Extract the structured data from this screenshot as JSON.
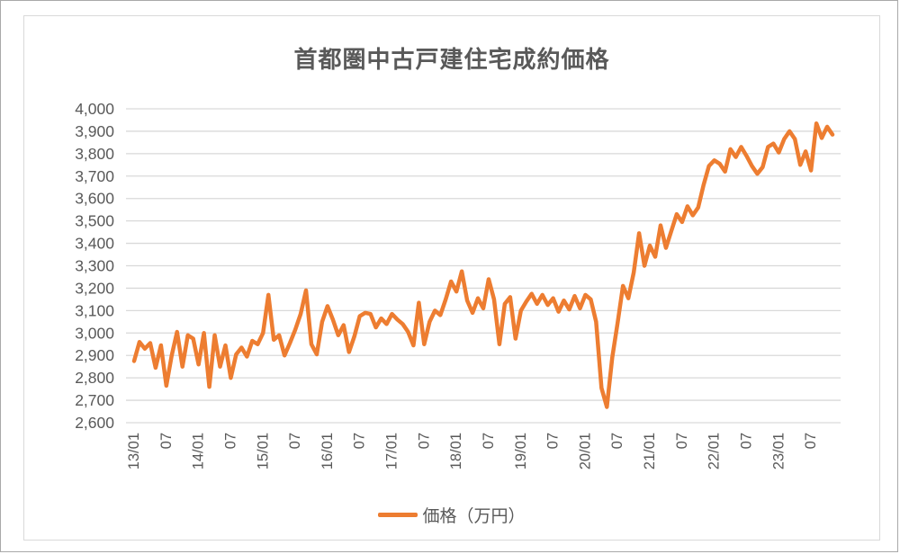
{
  "page": {
    "title": "首都圏中古戸建住宅成約価格"
  },
  "colors": {
    "line": "#ED7D31",
    "text": "#595959",
    "grid": "#D9D9D9",
    "frame_border": "#D9D9D9"
  },
  "legend": {
    "label": "価格（万円）"
  },
  "chart_data": {
    "type": "line",
    "title": "首都圏中古戸建住宅成約価格",
    "xlabel": "",
    "ylabel": "",
    "ylim": [
      2600,
      4000
    ],
    "y_tick_step": 100,
    "y_ticks": [
      2600,
      2700,
      2800,
      2900,
      3000,
      3100,
      3200,
      3300,
      3400,
      3500,
      3600,
      3700,
      3800,
      3900,
      4000
    ],
    "y_tick_labels": [
      "2,600",
      "2,700",
      "2,800",
      "2,900",
      "3,000",
      "3,100",
      "3,200",
      "3,300",
      "3,400",
      "3,500",
      "3,600",
      "3,700",
      "3,800",
      "3,900",
      "4,000"
    ],
    "grid": "horizontal",
    "legend_position": "bottom",
    "x_start": "2013-01",
    "x_frequency": "monthly",
    "x_labels": [
      "13/01",
      "07",
      "14/01",
      "07",
      "15/01",
      "07",
      "16/01",
      "07",
      "17/01",
      "07",
      "18/01",
      "07",
      "19/01",
      "07",
      "20/01",
      "07",
      "21/01",
      "07",
      "22/01",
      "07",
      "23/01",
      "07"
    ],
    "x_label_every": 6,
    "series": [
      {
        "name": "価格（万円）",
        "color": "#ED7D31",
        "values": [
          2875,
          2960,
          2930,
          2955,
          2845,
          2945,
          2765,
          2900,
          3005,
          2850,
          2990,
          2975,
          2860,
          3000,
          2760,
          2990,
          2850,
          2945,
          2800,
          2905,
          2935,
          2895,
          2965,
          2950,
          3000,
          3170,
          2970,
          2990,
          2900,
          2955,
          3015,
          3085,
          3190,
          2950,
          2905,
          3050,
          3120,
          3060,
          2990,
          3035,
          2915,
          2985,
          3075,
          3090,
          3085,
          3025,
          3065,
          3040,
          3085,
          3060,
          3040,
          3005,
          2945,
          3135,
          2950,
          3050,
          3100,
          3080,
          3150,
          3230,
          3185,
          3275,
          3145,
          3090,
          3155,
          3110,
          3240,
          3150,
          2950,
          3130,
          3160,
          2975,
          3100,
          3140,
          3175,
          3130,
          3170,
          3125,
          3155,
          3095,
          3145,
          3105,
          3165,
          3110,
          3170,
          3150,
          3050,
          2755,
          2670,
          2890,
          3045,
          3210,
          3155,
          3270,
          3445,
          3300,
          3390,
          3340,
          3480,
          3380,
          3455,
          3530,
          3495,
          3565,
          3525,
          3560,
          3660,
          3745,
          3770,
          3755,
          3720,
          3820,
          3785,
          3830,
          3790,
          3745,
          3710,
          3740,
          3830,
          3845,
          3805,
          3865,
          3900,
          3865,
          3750,
          3810,
          3725,
          3935,
          3870,
          3920,
          3885
        ]
      }
    ]
  }
}
